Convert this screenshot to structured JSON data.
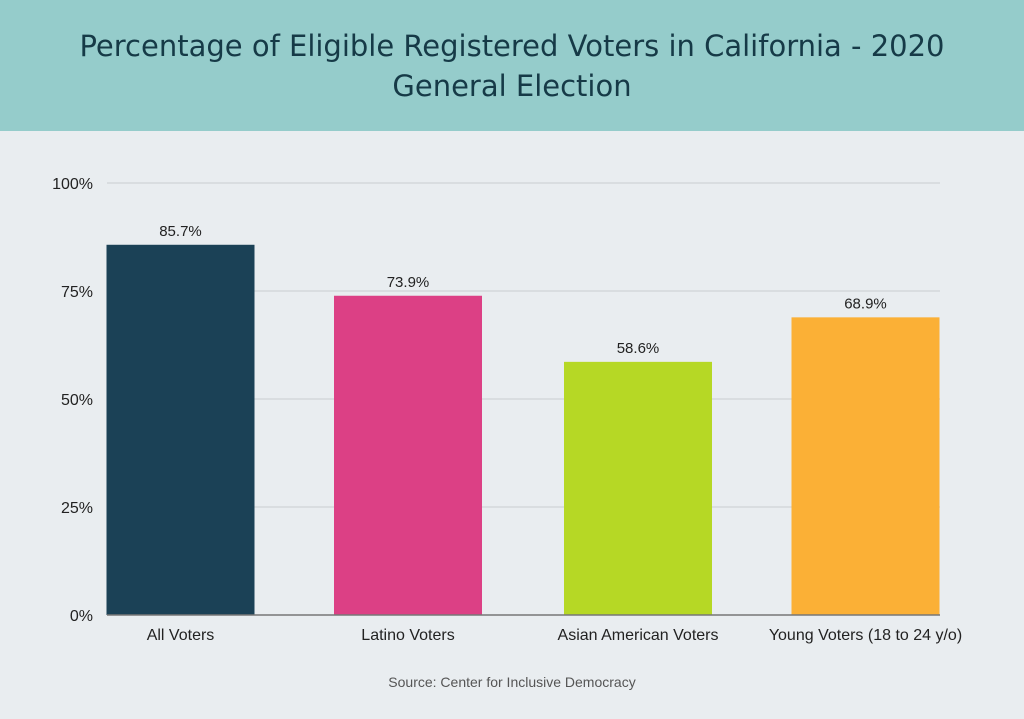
{
  "chart_data": {
    "type": "bar",
    "title": "Percentage of Eligible Registered Voters in California - 2020 General Election",
    "categories": [
      "All Voters",
      "Latino Voters",
      "Asian American Voters",
      "Young Voters (18 to 24 y/o)"
    ],
    "values": [
      85.7,
      73.9,
      58.6,
      68.9
    ],
    "data_labels": [
      "85.7%",
      "73.9%",
      "58.6%",
      "68.9%"
    ],
    "colors": [
      "#1b4156",
      "#dc4085",
      "#b6d825",
      "#fbb036"
    ],
    "ylim": [
      0,
      100
    ],
    "yticks": [
      0,
      25,
      50,
      75,
      100
    ],
    "ytick_labels": [
      "0%",
      "25%",
      "50%",
      "75%",
      "100%"
    ],
    "grid": true,
    "xlabel": "",
    "ylabel": "",
    "source": "Source: Center for Inclusive Democracy"
  },
  "colors": {
    "header_bg": "#95cccb",
    "title": "#163a47",
    "background": "#e9edf0"
  }
}
